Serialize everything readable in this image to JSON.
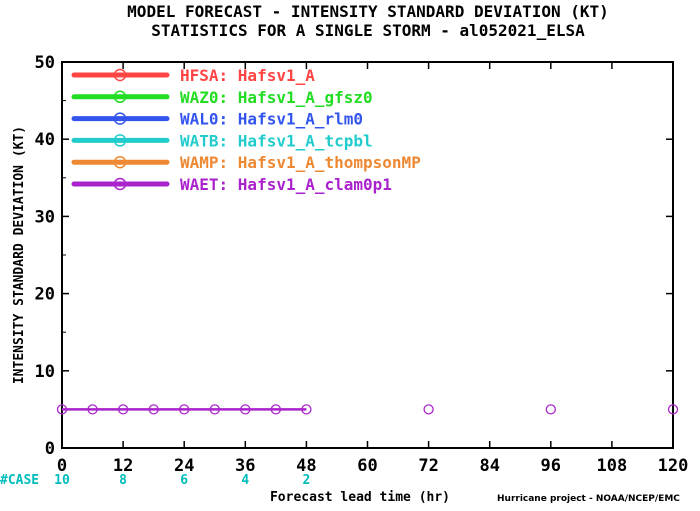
{
  "chart_data": {
    "type": "line",
    "title": [
      "MODEL FORECAST - INTENSITY STANDARD DEVIATION (KT)",
      "STATISTICS FOR A SINGLE STORM - al052021_ELSA"
    ],
    "xlabel": "Forecast lead time (hr)",
    "ylabel": "INTENSITY STANDARD DEVIATION (KT)",
    "xlim": [
      0,
      120
    ],
    "ylim": [
      0,
      50
    ],
    "xticks": [
      0,
      12,
      24,
      36,
      48,
      60,
      72,
      84,
      96,
      108,
      120
    ],
    "yticks": [
      0,
      10,
      20,
      30,
      40,
      50
    ],
    "legend_position": "top-left",
    "series": [
      {
        "name": "HFSA: Hafsv1_A",
        "color": "#ff4444",
        "x": [],
        "y": []
      },
      {
        "name": "WAZ0: Hafsv1_A_gfsz0",
        "color": "#22dd22",
        "x": [],
        "y": []
      },
      {
        "name": "WAL0: Hafsv1_A_rlm0",
        "color": "#3355ee",
        "x": [],
        "y": []
      },
      {
        "name": "WATB: Hafsv1_A_tcpbl",
        "color": "#22cccc",
        "x": [],
        "y": []
      },
      {
        "name": "WAMP: Hafsv1_A_thompsonMP",
        "color": "#ee8833",
        "x": [],
        "y": []
      },
      {
        "name": "WAET: Hafsv1_A_clam0p1",
        "color": "#aa22cc",
        "x": [
          0,
          6,
          12,
          18,
          24,
          30,
          36,
          42,
          48,
          72,
          96,
          120
        ],
        "y": [
          5,
          5,
          5,
          5,
          5,
          5,
          5,
          5,
          5,
          5,
          5,
          5
        ],
        "line_through_hour": 48
      }
    ],
    "case_counts": {
      "label": "#CASE",
      "x": [
        0,
        12,
        24,
        36,
        48
      ],
      "values": [
        "10",
        "8",
        "6",
        "4",
        "2"
      ]
    },
    "credit": "Hurricane project - NOAA/NCEP/EMC"
  }
}
